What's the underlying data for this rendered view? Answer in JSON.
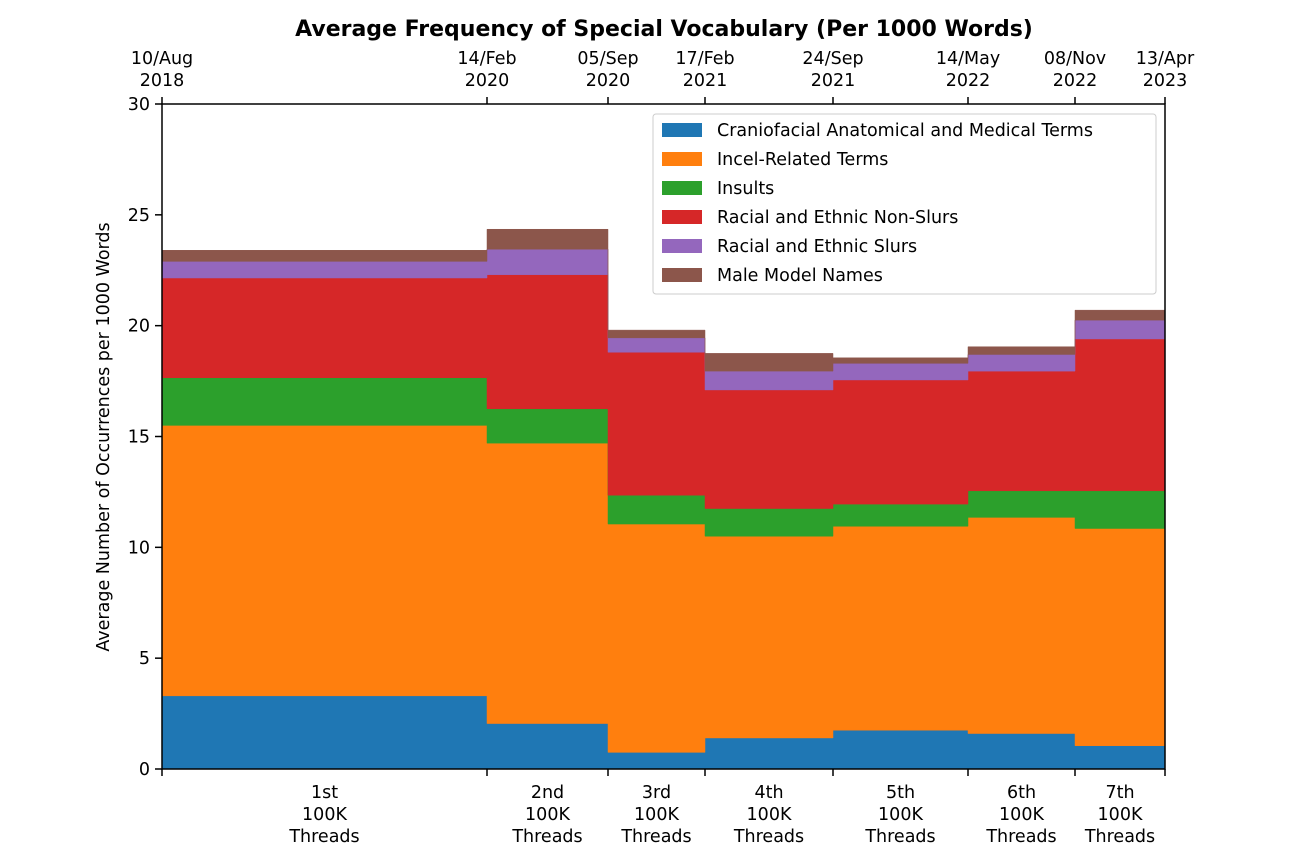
{
  "chart_data": {
    "type": "area",
    "step": true,
    "title": "Average Frequency of Special Vocabulary (Per 1000 Words)",
    "ylabel": "Average Number of Occurrences per 1000 Words",
    "ylim": [
      0,
      30
    ],
    "yticks": [
      0,
      5,
      10,
      15,
      20,
      25,
      30
    ],
    "top_axis_dates": [
      [
        "10/Aug",
        "2018"
      ],
      [
        "14/Feb",
        "2020"
      ],
      [
        "05/Sep",
        "2020"
      ],
      [
        "17/Feb",
        "2021"
      ],
      [
        "24/Sep",
        "2021"
      ],
      [
        "14/May",
        "2022"
      ],
      [
        "08/Nov",
        "2022"
      ],
      [
        "13/Apr",
        "2023"
      ]
    ],
    "categories": [
      [
        "1st",
        "100K",
        "Threads"
      ],
      [
        "2nd",
        "100K",
        "Threads"
      ],
      [
        "3rd",
        "100K",
        "Threads"
      ],
      [
        "4th",
        "100K",
        "Threads"
      ],
      [
        "5th",
        "100K",
        "Threads"
      ],
      [
        "6th",
        "100K",
        "Threads"
      ],
      [
        "7th",
        "100K",
        "Threads"
      ]
    ],
    "series": [
      {
        "name": "Craniofacial Anatomical and Medical Terms",
        "color": "#1f77b4",
        "values": [
          3.3,
          2.05,
          0.75,
          1.4,
          1.75,
          1.6,
          1.05
        ]
      },
      {
        "name": "Incel-Related Terms",
        "color": "#ff7f0e",
        "values": [
          12.2,
          12.65,
          10.3,
          9.1,
          9.2,
          9.75,
          9.8
        ]
      },
      {
        "name": "Insults",
        "color": "#2ca02c",
        "values": [
          2.15,
          1.55,
          1.3,
          1.25,
          1.0,
          1.2,
          1.7
        ]
      },
      {
        "name": "Racial and Ethnic Non-Slurs",
        "color": "#d62728",
        "values": [
          4.5,
          6.05,
          6.45,
          5.35,
          5.6,
          5.4,
          6.85
        ]
      },
      {
        "name": "Racial and Ethnic Slurs",
        "color": "#9467bd",
        "values": [
          0.75,
          1.15,
          0.65,
          0.85,
          0.75,
          0.75,
          0.85
        ]
      },
      {
        "name": "Male Model Names",
        "color": "#8c564b",
        "values": [
          0.5,
          0.9,
          0.35,
          0.8,
          0.25,
          0.35,
          0.45
        ]
      }
    ],
    "legend_position": "top-right",
    "grid": false
  }
}
